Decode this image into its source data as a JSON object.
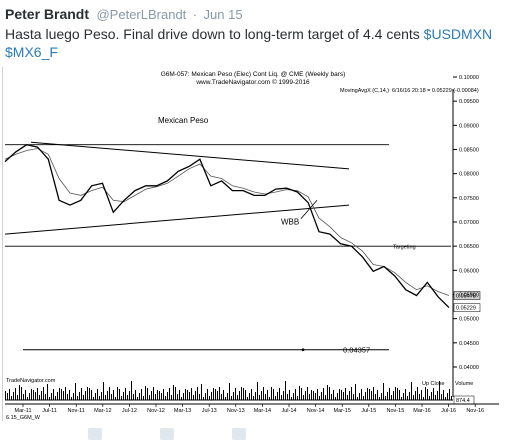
{
  "tweet": {
    "author_name": "Peter Brandt",
    "author_handle": "@PeterLBrandt",
    "separator": "·",
    "timestamp": "Jun 15",
    "text_plain": "Hasta luego Peso. Final drive down to long-term target of 4.4 cents ",
    "hashtag_usdmxn": "$USDMXN",
    "hashtag_mx6f": "$MX6_F"
  },
  "chart": {
    "header_title": "G6M-057: Mexican Peso (Elec) Cont Liq. @ CME (Weekly bars)",
    "header_copyright": "www.TradeNavigator.com © 1999-2016",
    "indicator_label": "MovingAvgX (C,14,)",
    "indicator_value": "6/16/16 20:18 = 0.05229 (-0.00084)",
    "annotation_title": "Mexican Peso",
    "annotation_wbb": "WBB",
    "annotation_targeting": "Targeting",
    "target_label": "0.04357",
    "source_label": "TradeNavigator.com",
    "footer_left": "6.15_G6M_W",
    "volume_label_upclose": "Up Close",
    "volume_label_volume": "Volume",
    "price_ticks": [
      "0.10000",
      "0.09500",
      "0.09000",
      "0.08500",
      "0.08000",
      "0.07500",
      "0.07000",
      "0.06500",
      "0.06000",
      "0.05500",
      "0.05000",
      "0.04500",
      "0.04000"
    ],
    "last_price_boxes": [
      "0.05478",
      "0.05229"
    ],
    "volume_tick_label": "874.4",
    "date_ticks": [
      "Mar-11",
      "Jul-11",
      "Nov-11",
      "Mar-12",
      "Jul-12",
      "Nov-12",
      "Mar-13",
      "Jul-13",
      "Nov-13",
      "Mar-14",
      "Jul-14",
      "Nov-14",
      "Mar-15",
      "Jul-15",
      "Nov-15",
      "Mar-16",
      "Jul-16",
      "Nov-16"
    ]
  },
  "chart_data": {
    "type": "line",
    "title": "G6M-057: Mexican Peso (Elec) Cont Liq. @ CME (Weekly bars)",
    "subtitle": "MovingAvgX (C,14,)",
    "x": [
      "Jan-11",
      "Mar-11",
      "Apr-11",
      "Jun-11",
      "Aug-11",
      "Sep-11",
      "Nov-11",
      "Jan-12",
      "Feb-12",
      "Mar-12",
      "May-12",
      "Jun-12",
      "Jul-12",
      "Sep-12",
      "Nov-12",
      "Jan-13",
      "Mar-13",
      "Apr-13",
      "May-13",
      "Jun-13",
      "Jul-13",
      "Sep-13",
      "Nov-13",
      "Jan-14",
      "Mar-14",
      "May-14",
      "Jul-14",
      "Sep-14",
      "Oct-14",
      "Dec-14",
      "Jan-15",
      "Mar-15",
      "May-15",
      "Jul-15",
      "Aug-15",
      "Oct-15",
      "Nov-15",
      "Jan-16",
      "Feb-16",
      "Apr-16",
      "May-16",
      "Jun-16"
    ],
    "series": [
      {
        "values": [
          0.0825,
          0.0845,
          0.086,
          0.0855,
          0.083,
          0.0745,
          0.0735,
          0.0745,
          0.0775,
          0.078,
          0.072,
          0.0745,
          0.0765,
          0.0775,
          0.0775,
          0.0785,
          0.0805,
          0.0815,
          0.083,
          0.0775,
          0.0785,
          0.0765,
          0.0765,
          0.0755,
          0.0755,
          0.0768,
          0.077,
          0.0762,
          0.074,
          0.068,
          0.0675,
          0.0655,
          0.065,
          0.0628,
          0.0598,
          0.0608,
          0.0588,
          0.056,
          0.0548,
          0.0575,
          0.0545,
          0.0523
        ]
      },
      {
        "values": [
          0.083,
          0.084,
          0.0848,
          0.0852,
          0.084,
          0.079,
          0.076,
          0.0755,
          0.0765,
          0.0772,
          0.0745,
          0.0742,
          0.0755,
          0.0768,
          0.0773,
          0.078,
          0.0795,
          0.081,
          0.082,
          0.0795,
          0.079,
          0.0775,
          0.077,
          0.0762,
          0.0758,
          0.0762,
          0.0767,
          0.0765,
          0.0752,
          0.0708,
          0.069,
          0.0668,
          0.0657,
          0.064,
          0.0612,
          0.0608,
          0.0595,
          0.0575,
          0.056,
          0.0568,
          0.0556,
          0.0548
        ]
      }
    ],
    "annotations": [
      "Mexican Peso",
      "WBB",
      "Targeting",
      "0.04357"
    ],
    "ylim": [
      0.04,
      0.1
    ],
    "grid": false,
    "colors": {
      "price": "#000000",
      "moving_average": "#555555",
      "background": "#ffffff"
    }
  }
}
